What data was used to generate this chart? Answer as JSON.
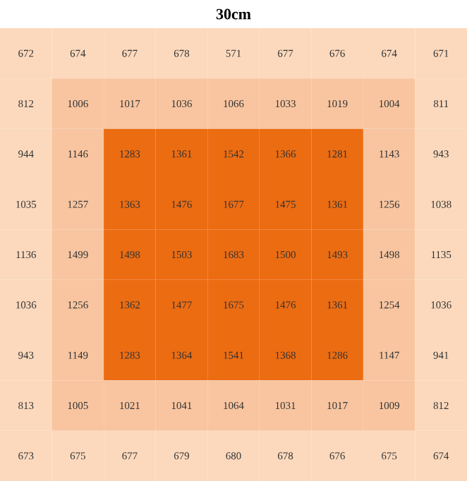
{
  "chart_data": {
    "type": "heatmap",
    "title": "30cm",
    "categories": [
      null,
      null,
      null,
      null,
      null,
      null,
      null,
      null,
      null
    ],
    "y_categories": [
      null,
      null,
      null,
      null,
      null,
      null,
      null,
      null,
      null
    ],
    "cells": [
      [
        672,
        674,
        677,
        678,
        571,
        677,
        676,
        674,
        671
      ],
      [
        812,
        1006,
        1017,
        1036,
        1066,
        1033,
        1019,
        1004,
        811
      ],
      [
        944,
        1146,
        1283,
        1361,
        1542,
        1366,
        1281,
        1143,
        943
      ],
      [
        1035,
        1257,
        1363,
        1476,
        1677,
        1475,
        1361,
        1256,
        1038
      ],
      [
        1136,
        1499,
        1498,
        1503,
        1683,
        1500,
        1493,
        1498,
        1135
      ],
      [
        1036,
        1256,
        1362,
        1477,
        1675,
        1476,
        1361,
        1254,
        1036
      ],
      [
        943,
        1149,
        1283,
        1364,
        1541,
        1368,
        1286,
        1147,
        941
      ],
      [
        813,
        1005,
        1021,
        1041,
        1064,
        1031,
        1017,
        1009,
        812
      ],
      [
        673,
        675,
        677,
        679,
        680,
        678,
        676,
        675,
        674
      ]
    ],
    "colors": [
      [
        "#fcd9bd",
        "#fcd9bd",
        "#fcd9bd",
        "#fcd9bd",
        "#fcd9bd",
        "#fcd9bd",
        "#fcd9bd",
        "#fcd9bd",
        "#fcd9bd"
      ],
      [
        "#fcd9bd",
        "#f8c5a0",
        "#f8c5a0",
        "#f8c5a0",
        "#f8c5a0",
        "#f8c5a0",
        "#f8c5a0",
        "#f8c5a0",
        "#fcd9bd"
      ],
      [
        "#fcd9bd",
        "#f8c5a0",
        "#ec6c12",
        "#ec6c12",
        "#ec6c12",
        "#ec6c12",
        "#ec6c12",
        "#f8c5a0",
        "#fcd9bd"
      ],
      [
        "#fcd9bd",
        "#f8c5a0",
        "#ec6c12",
        "#ec6c12",
        "#ec6c12",
        "#ec6c12",
        "#ec6c12",
        "#f8c5a0",
        "#fcd9bd"
      ],
      [
        "#fcd9bd",
        "#f8c5a0",
        "#ec6c12",
        "#ec6c12",
        "#ec6c12",
        "#ec6c12",
        "#ec6c12",
        "#f8c5a0",
        "#fcd9bd"
      ],
      [
        "#fcd9bd",
        "#f8c5a0",
        "#ec6c12",
        "#ec6c12",
        "#ec6c12",
        "#ec6c12",
        "#ec6c12",
        "#f8c5a0",
        "#fcd9bd"
      ],
      [
        "#fcd9bd",
        "#f8c5a0",
        "#ec6c12",
        "#ec6c12",
        "#ec6c12",
        "#ec6c12",
        "#ec6c12",
        "#f8c5a0",
        "#fcd9bd"
      ],
      [
        "#fcd9bd",
        "#f8c5a0",
        "#f8c5a0",
        "#f8c5a0",
        "#f8c5a0",
        "#f8c5a0",
        "#f8c5a0",
        "#f8c5a0",
        "#fcd9bd"
      ],
      [
        "#fcd9bd",
        "#fcd9bd",
        "#fcd9bd",
        "#fcd9bd",
        "#fcd9bd",
        "#fcd9bd",
        "#fcd9bd",
        "#fcd9bd",
        "#fcd9bd"
      ]
    ],
    "data_labels": true
  }
}
